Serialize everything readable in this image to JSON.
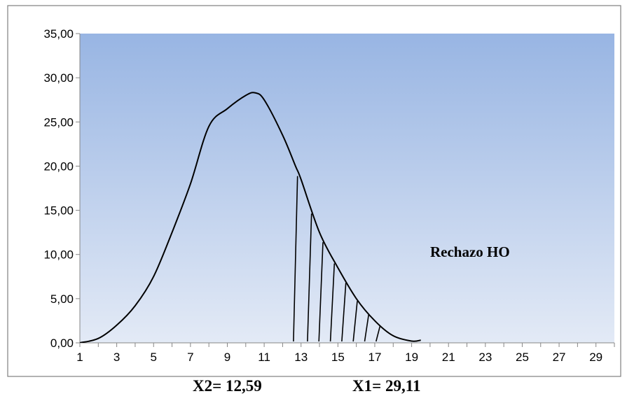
{
  "chart_data": {
    "type": "line",
    "title": "",
    "xlabel": "",
    "ylabel": "",
    "xlim": [
      1,
      30
    ],
    "ylim": [
      0,
      35
    ],
    "x_ticks": [
      "1",
      "3",
      "5",
      "7",
      "9",
      "11",
      "13",
      "15",
      "17",
      "19",
      "21",
      "23",
      "25",
      "27",
      "29"
    ],
    "y_ticks": [
      "0,00",
      "5,00",
      "10,00",
      "15,00",
      "20,00",
      "25,00",
      "30,00",
      "35,00"
    ],
    "grid": "vertical-tick-marks-only",
    "plot_background": {
      "top": "#98b5e3",
      "bottom": "#e3eaf6"
    },
    "series": [
      {
        "x": [
          1,
          2,
          3,
          4,
          5,
          6,
          7,
          8,
          9,
          10,
          10.5,
          11,
          12,
          12.7,
          13,
          14,
          15,
          16,
          17,
          18,
          19,
          19.5
        ],
        "y": [
          0.0,
          0.5,
          2.0,
          4.2,
          7.5,
          12.5,
          18.0,
          24.5,
          26.5,
          28.0,
          28.3,
          27.5,
          23.5,
          20.0,
          18.5,
          12.5,
          8.5,
          5.0,
          2.5,
          0.8,
          0.2,
          0.3
        ]
      }
    ],
    "rejection_region": {
      "x_start": 12.59,
      "x_end": 17.6,
      "hatch": "vertical-lines"
    },
    "annotation": "Rechazo HO"
  },
  "footer": {
    "x2_label": "X2= 12,59",
    "x1_label": "X1=  29,11"
  },
  "colors": {
    "frame": "#7f7f7f",
    "axis": "#868686",
    "curve": "#000000"
  }
}
